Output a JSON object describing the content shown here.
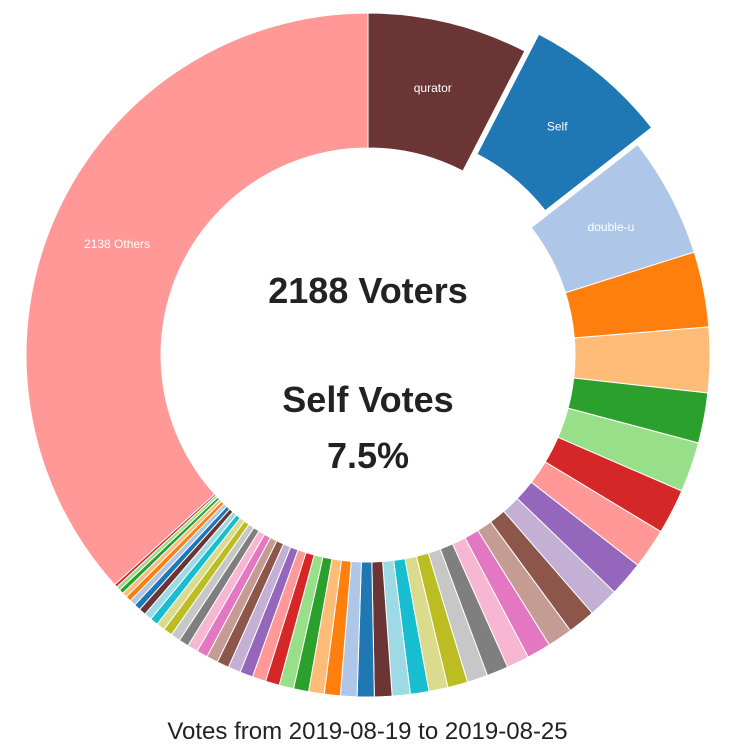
{
  "chart_data": {
    "type": "pie",
    "donut": true,
    "title": "",
    "center_lines": [
      "2188 Voters",
      "Self Votes",
      "7.5%"
    ],
    "caption": "Votes from 2019-08-19 to 2019-08-25",
    "exploded_slice": "Self",
    "slices": [
      {
        "label": "qurator",
        "value": 32,
        "color": "#6b3535"
      },
      {
        "label": "Self",
        "value": 29,
        "color": "#1f77b4"
      },
      {
        "label": "double-u",
        "value": 24,
        "color": "#aec7e8"
      },
      {
        "label": "",
        "value": 15,
        "color": "#ff7f0e"
      },
      {
        "label": "",
        "value": 13,
        "color": "#ffbb78"
      },
      {
        "label": "",
        "value": 10,
        "color": "#2ca02c"
      },
      {
        "label": "",
        "value": 10,
        "color": "#98df8a"
      },
      {
        "label": "",
        "value": 9,
        "color": "#d62728"
      },
      {
        "label": "",
        "value": 8,
        "color": "#ff9896"
      },
      {
        "label": "",
        "value": 7,
        "color": "#9467bd"
      },
      {
        "label": "",
        "value": 6,
        "color": "#c5b0d5"
      },
      {
        "label": "",
        "value": 5.5,
        "color": "#8c564b"
      },
      {
        "label": "",
        "value": 5,
        "color": "#c49c94"
      },
      {
        "label": "",
        "value": 4.8,
        "color": "#e377c2"
      },
      {
        "label": "",
        "value": 4.5,
        "color": "#f7b6d2"
      },
      {
        "label": "",
        "value": 4.3,
        "color": "#7f7f7f"
      },
      {
        "label": "",
        "value": 4.1,
        "color": "#c7c7c7"
      },
      {
        "label": "",
        "value": 4,
        "color": "#bcbd22"
      },
      {
        "label": "",
        "value": 3.8,
        "color": "#dbdb8d"
      },
      {
        "label": "",
        "value": 3.7,
        "color": "#17becf"
      },
      {
        "label": "",
        "value": 3.6,
        "color": "#9edae5"
      },
      {
        "label": "",
        "value": 3.5,
        "color": "#6b3535"
      },
      {
        "label": "",
        "value": 3.4,
        "color": "#1f77b4"
      },
      {
        "label": "",
        "value": 3.3,
        "color": "#aec7e8"
      },
      {
        "label": "",
        "value": 3.2,
        "color": "#ff7f0e"
      },
      {
        "label": "",
        "value": 3.1,
        "color": "#ffbb78"
      },
      {
        "label": "",
        "value": 3,
        "color": "#2ca02c"
      },
      {
        "label": "",
        "value": 2.9,
        "color": "#98df8a"
      },
      {
        "label": "",
        "value": 2.8,
        "color": "#d62728"
      },
      {
        "label": "",
        "value": 2.7,
        "color": "#ff9896"
      },
      {
        "label": "",
        "value": 2.6,
        "color": "#9467bd"
      },
      {
        "label": "",
        "value": 2.5,
        "color": "#c5b0d5"
      },
      {
        "label": "",
        "value": 2.4,
        "color": "#8c564b"
      },
      {
        "label": "",
        "value": 2.3,
        "color": "#c49c94"
      },
      {
        "label": "",
        "value": 2.2,
        "color": "#e377c2"
      },
      {
        "label": "",
        "value": 2.1,
        "color": "#f7b6d2"
      },
      {
        "label": "",
        "value": 2,
        "color": "#7f7f7f"
      },
      {
        "label": "",
        "value": 1.9,
        "color": "#c7c7c7"
      },
      {
        "label": "",
        "value": 1.8,
        "color": "#bcbd22"
      },
      {
        "label": "",
        "value": 1.7,
        "color": "#dbdb8d"
      },
      {
        "label": "",
        "value": 1.6,
        "color": "#17becf"
      },
      {
        "label": "",
        "value": 1.5,
        "color": "#9edae5"
      },
      {
        "label": "",
        "value": 1.4,
        "color": "#6b3535"
      },
      {
        "label": "",
        "value": 1.3,
        "color": "#1f77b4"
      },
      {
        "label": "",
        "value": 1.2,
        "color": "#aec7e8"
      },
      {
        "label": "",
        "value": 1.1,
        "color": "#ff7f0e"
      },
      {
        "label": "",
        "value": 1,
        "color": "#ffbb78"
      },
      {
        "label": "",
        "value": 0.9,
        "color": "#2ca02c"
      },
      {
        "label": "",
        "value": 0.8,
        "color": "#98df8a"
      },
      {
        "label": "",
        "value": 0.6,
        "color": "#d62728"
      },
      {
        "label": "2138 Others",
        "value": 155,
        "color": "#ff9896"
      }
    ]
  }
}
